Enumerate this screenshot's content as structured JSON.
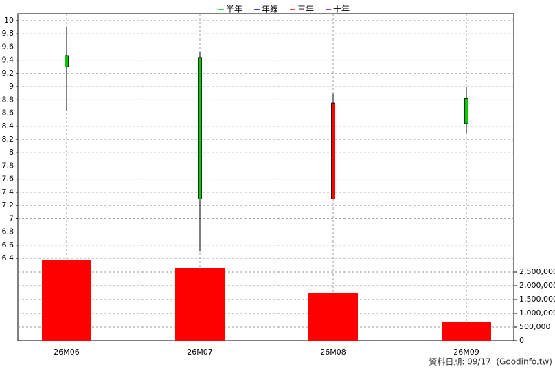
{
  "chart_data": {
    "type": "candlestick",
    "legend": [
      {
        "name": "半年",
        "color": "#00cc00"
      },
      {
        "name": "年線",
        "color": "#0000ff"
      },
      {
        "name": "三年",
        "color": "#ff0000"
      },
      {
        "name": "十年",
        "color": "#6600cc"
      }
    ],
    "categories": [
      "26M06",
      "26M07",
      "26M08",
      "26M09"
    ],
    "open": [
      9.47,
      9.44,
      7.3,
      8.82
    ],
    "high": [
      9.9,
      9.53,
      8.89,
      9.0
    ],
    "low": [
      8.63,
      6.5,
      7.3,
      8.3
    ],
    "close": [
      9.3,
      7.3,
      8.75,
      8.44
    ],
    "up_color": "#ff0000",
    "down_color": "#00cc00",
    "volume": [
      2930000,
      2650000,
      1750000,
      675000
    ],
    "volume_color": "#ff0000",
    "ylim": [
      6.4,
      10
    ],
    "yticks": [
      6.4,
      6.6,
      6.8,
      7,
      7.2,
      7.4,
      7.6,
      7.8,
      8,
      8.2,
      8.4,
      8.6,
      8.8,
      9,
      9.2,
      9.4,
      9.6,
      9.8,
      10
    ],
    "y2lim": [
      0,
      3000000
    ],
    "y2ticks": [
      0,
      {
        "value": 500000,
        "label": "500,000"
      },
      {
        "value": 1000000,
        "label": "1,000,000"
      },
      {
        "value": 1500000,
        "label": "1,500,000"
      },
      {
        "value": 2000000,
        "label": "2,000,000"
      },
      {
        "value": 2500000,
        "label": "2,500,000"
      }
    ],
    "grid": true,
    "footer": "資料日期: 09/17  (Goodinfo.tw)"
  }
}
